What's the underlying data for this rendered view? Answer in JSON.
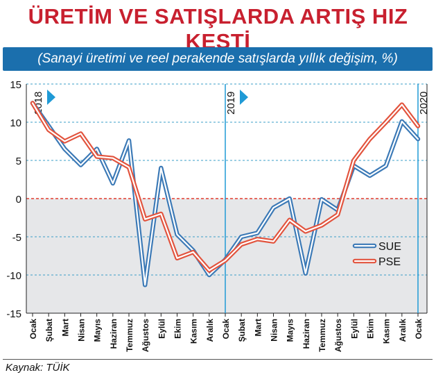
{
  "title": "ÜRETİM VE SATIŞLARDA ARTIŞ HIZ KESTİ",
  "subtitle": "(Sanayi üretimi ve reel perakende satışlarda yıllık değişim, %)",
  "source": "Kaynak: TÜİK",
  "colors": {
    "sue": "#3b79b6",
    "pse": "#e2533d",
    "grid": "#3a9cc7",
    "negative_bg": "#e6e7e9",
    "zero_line": "#e23b2e",
    "year_marker": "#1f9ad6"
  },
  "chart_data": {
    "type": "line",
    "title": "ÜRETİM VE SATIŞLARDA ARTIŞ HIZ KESTİ",
    "subtitle": "(Sanayi üretimi ve reel perakende satışlarda yıllık değişim, %)",
    "xlabel": "",
    "ylabel": "",
    "ylim": [
      -15,
      15
    ],
    "yticks": [
      15,
      10,
      5,
      0,
      -5,
      -10,
      -15
    ],
    "grid": true,
    "legend_position": "right",
    "categories": [
      "Ocak",
      "Şubat",
      "Mart",
      "Nisan",
      "Mayıs",
      "Haziran",
      "Temmuz",
      "Ağustos",
      "Eylül",
      "Ekim",
      "Kasım",
      "Aralık",
      "Ocak",
      "Şubat",
      "Mart",
      "Nisan",
      "Mayıs",
      "Haziran",
      "Temmuz",
      "Ağustos",
      "Eylül",
      "Ekim",
      "Kasım",
      "Aralık",
      "Ocak"
    ],
    "year_markers": [
      {
        "label": "2018",
        "index": 0
      },
      {
        "label": "2019",
        "index": 12
      },
      {
        "label": "2020",
        "index": 24
      }
    ],
    "series": [
      {
        "name": "SUE",
        "values": [
          12.5,
          9.5,
          6.5,
          4.4,
          6.5,
          2.0,
          7.6,
          -11.3,
          4.0,
          -4.7,
          -6.8,
          -10.0,
          -8.0,
          -5.0,
          -4.5,
          -1.2,
          0.0,
          -9.8,
          -0.1,
          -1.5,
          4.3,
          3.0,
          4.3,
          10.1,
          7.8
        ]
      },
      {
        "name": "PSE",
        "values": [
          12.5,
          9.0,
          7.5,
          8.5,
          5.5,
          5.3,
          4.1,
          -2.7,
          -2.0,
          -7.8,
          -7.0,
          -9.4,
          -8.1,
          -6.0,
          -5.3,
          -5.6,
          -2.8,
          -4.3,
          -3.5,
          -2.1,
          5.0,
          7.8,
          10.0,
          12.3,
          9.5
        ]
      }
    ]
  }
}
